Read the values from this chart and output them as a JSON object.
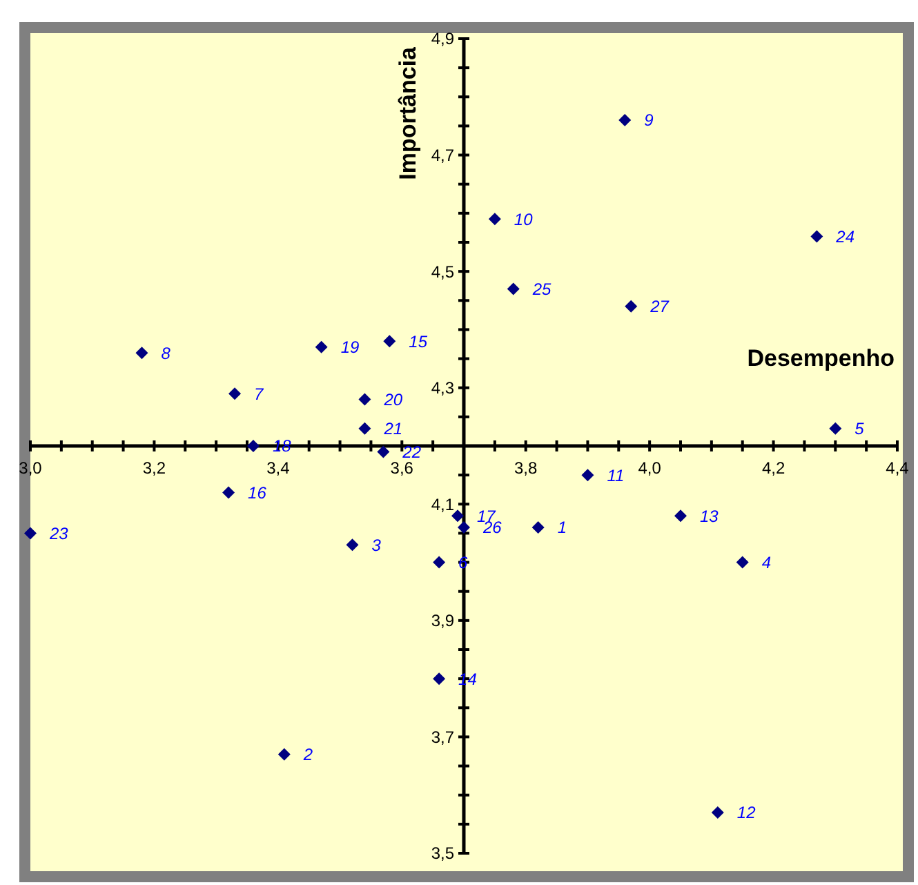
{
  "chart_data": {
    "type": "scatter",
    "xlabel": "Desempenho",
    "ylabel": "Importância",
    "xlim": [
      3.0,
      4.4
    ],
    "ylim": [
      3.5,
      4.9
    ],
    "xticks": [
      {
        "value": 3.0,
        "label": "3,0"
      },
      {
        "value": 3.2,
        "label": "3,2"
      },
      {
        "value": 3.4,
        "label": "3,4"
      },
      {
        "value": 3.6,
        "label": "3,6"
      },
      {
        "value": 3.8,
        "label": "3,8"
      },
      {
        "value": 4.0,
        "label": "4,0"
      },
      {
        "value": 4.2,
        "label": "4,2"
      },
      {
        "value": 4.4,
        "label": "4,4"
      }
    ],
    "yticks": [
      {
        "value": 3.5,
        "label": "3,5"
      },
      {
        "value": 3.7,
        "label": "3,7"
      },
      {
        "value": 3.9,
        "label": "3,9"
      },
      {
        "value": 4.1,
        "label": "4,1"
      },
      {
        "value": 4.3,
        "label": "4,3"
      },
      {
        "value": 4.5,
        "label": "4,5"
      },
      {
        "value": 4.7,
        "label": "4,7"
      },
      {
        "value": 4.9,
        "label": "4,9"
      }
    ],
    "marker": "diamond",
    "grid": false,
    "series": [
      {
        "color": "#000080",
        "x": [
          3.82,
          3.41,
          3.52,
          4.15,
          4.3,
          3.66,
          3.33,
          3.18,
          3.96,
          3.75,
          3.9,
          4.11,
          4.05,
          3.66,
          3.58,
          3.32,
          3.69,
          3.36,
          3.47,
          3.54,
          3.54,
          3.57,
          3.0,
          4.27,
          3.78,
          3.7,
          3.97
        ],
        "values": [
          4.06,
          3.67,
          4.03,
          4.0,
          4.23,
          4.0,
          4.29,
          4.36,
          4.76,
          4.59,
          4.15,
          3.57,
          4.08,
          3.8,
          4.38,
          4.12,
          4.08,
          4.2,
          4.37,
          4.28,
          4.23,
          4.19,
          4.05,
          4.56,
          4.47,
          4.06,
          4.44
        ]
      }
    ],
    "annotations": [
      {
        "text": "1",
        "x": 3.82,
        "y": 4.06
      },
      {
        "text": "2",
        "x": 3.41,
        "y": 3.67
      },
      {
        "text": "3",
        "x": 3.52,
        "y": 4.03
      },
      {
        "text": "4",
        "x": 4.15,
        "y": 4.0
      },
      {
        "text": "5",
        "x": 4.3,
        "y": 4.23
      },
      {
        "text": "6",
        "x": 3.66,
        "y": 4.0
      },
      {
        "text": "7",
        "x": 3.33,
        "y": 4.29
      },
      {
        "text": "8",
        "x": 3.18,
        "y": 4.36
      },
      {
        "text": "9",
        "x": 3.96,
        "y": 4.76
      },
      {
        "text": "10",
        "x": 3.75,
        "y": 4.59
      },
      {
        "text": "11",
        "x": 3.9,
        "y": 4.15
      },
      {
        "text": "12",
        "x": 4.11,
        "y": 3.57
      },
      {
        "text": "13",
        "x": 4.05,
        "y": 4.08
      },
      {
        "text": "14",
        "x": 3.66,
        "y": 3.8
      },
      {
        "text": "15",
        "x": 3.58,
        "y": 4.38
      },
      {
        "text": "16",
        "x": 3.32,
        "y": 4.12
      },
      {
        "text": "17",
        "x": 3.69,
        "y": 4.08
      },
      {
        "text": "18",
        "x": 3.36,
        "y": 4.2
      },
      {
        "text": "19",
        "x": 3.47,
        "y": 4.37
      },
      {
        "text": "20",
        "x": 3.54,
        "y": 4.28
      },
      {
        "text": "21",
        "x": 3.54,
        "y": 4.23
      },
      {
        "text": "22",
        "x": 3.57,
        "y": 4.19
      },
      {
        "text": "23",
        "x": 3.0,
        "y": 4.05
      },
      {
        "text": "24",
        "x": 4.27,
        "y": 4.56
      },
      {
        "text": "25",
        "x": 3.78,
        "y": 4.47
      },
      {
        "text": "26",
        "x": 3.7,
        "y": 4.06
      },
      {
        "text": "27",
        "x": 3.97,
        "y": 4.44
      }
    ]
  }
}
